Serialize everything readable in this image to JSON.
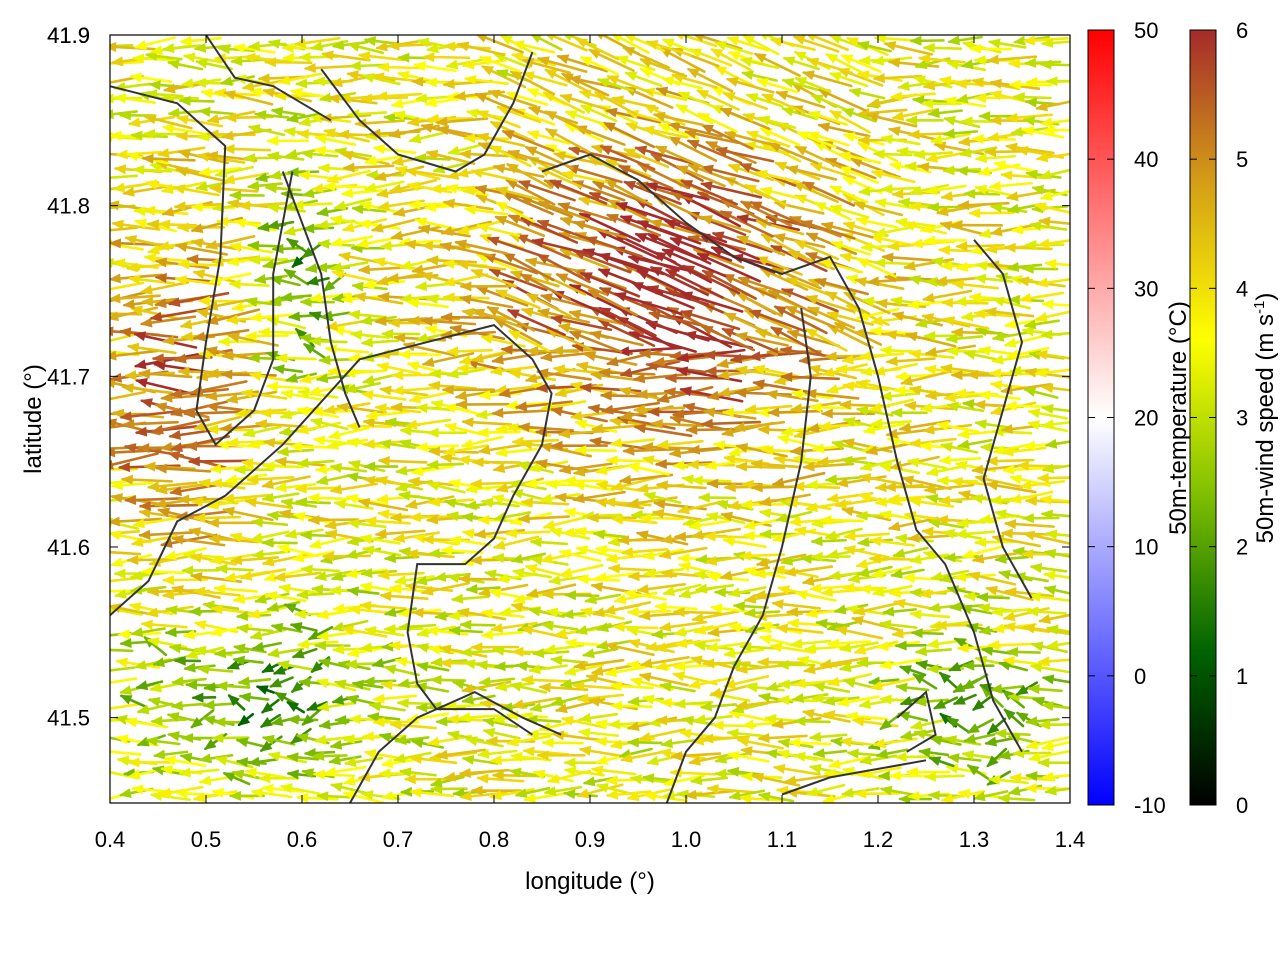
{
  "chart_data": {
    "type": "vector-field",
    "xlabel": "longitude (°)",
    "ylabel": "latitude (°)",
    "xlim": [
      0.4,
      1.4
    ],
    "ylim": [
      41.45,
      41.9
    ],
    "xticks": [
      "0.4",
      "0.5",
      "0.6",
      "0.7",
      "0.8",
      "0.9",
      "1.0",
      "1.1",
      "1.2",
      "1.3",
      "1.4"
    ],
    "yticks": [
      "41.5",
      "41.6",
      "41.7",
      "41.8",
      "41.9"
    ],
    "grid": false,
    "legend": "none",
    "colorbar_temperature": {
      "label": "50m-temperature (°C)",
      "range": [
        -10,
        50
      ],
      "ticks": [
        "-10",
        "0",
        "10",
        "20",
        "30",
        "40",
        "50"
      ],
      "colors": [
        "#0000ff",
        "#ffffff",
        "#ff0000"
      ]
    },
    "colorbar_wind": {
      "label_main": "50m-wind speed (m s",
      "label_sup": "-1",
      "label_end": ")",
      "range": [
        0,
        6
      ],
      "ticks": [
        "0",
        "1",
        "2",
        "3",
        "4",
        "5",
        "6"
      ],
      "colors": [
        "#000000",
        "#006400",
        "#7fbf00",
        "#ffff00",
        "#d4a017",
        "#a52a2a"
      ]
    },
    "wind_field": {
      "direction": "predominantly westward (east-to-west flow)",
      "speed_regions": [
        {
          "lon": [
            0.78,
            1.18
          ],
          "lat": [
            41.65,
            41.85
          ],
          "speed": 6
        },
        {
          "lon": [
            0.4,
            0.55
          ],
          "lat": [
            41.58,
            41.8
          ],
          "speed": 5.5
        },
        {
          "lon": [
            0.4,
            0.7
          ],
          "lat": [
            41.45,
            41.57
          ],
          "speed": 2
        },
        {
          "lon": [
            1.2,
            1.4
          ],
          "lat": [
            41.45,
            41.55
          ],
          "speed": 2
        },
        {
          "lon": [
            0.55,
            0.65
          ],
          "lat": [
            41.7,
            41.82
          ],
          "speed": 2
        }
      ]
    }
  }
}
